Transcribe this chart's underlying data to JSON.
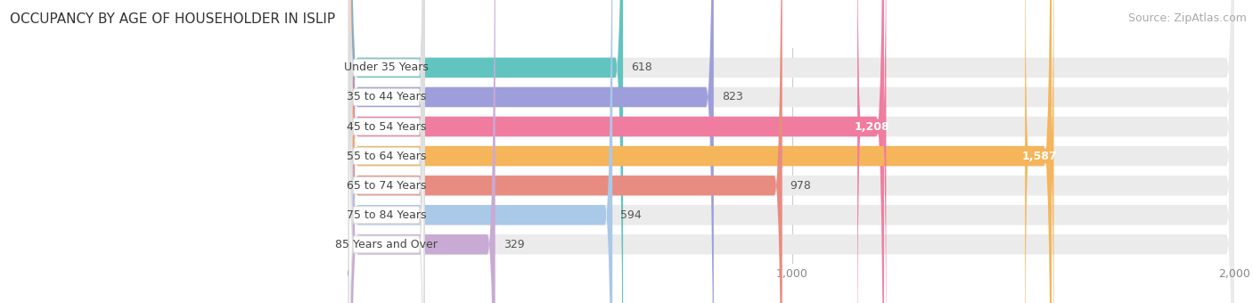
{
  "title": "OCCUPANCY BY AGE OF HOUSEHOLDER IN ISLIP",
  "source": "Source: ZipAtlas.com",
  "categories": [
    "Under 35 Years",
    "35 to 44 Years",
    "45 to 54 Years",
    "55 to 64 Years",
    "65 to 74 Years",
    "75 to 84 Years",
    "85 Years and Over"
  ],
  "values": [
    618,
    823,
    1208,
    1587,
    978,
    594,
    329
  ],
  "bar_colors": [
    "#62c4bf",
    "#9e9fda",
    "#f07ca0",
    "#f5b55a",
    "#e88c82",
    "#aac8e8",
    "#c8aad4"
  ],
  "bar_bg_color": "#ebebeb",
  "xlim_left": -380,
  "xlim_right": 2000,
  "xticks": [
    0,
    1000,
    2000
  ],
  "title_fontsize": 11,
  "source_fontsize": 9,
  "tick_fontsize": 9,
  "bar_label_fontsize": 9,
  "category_fontsize": 9,
  "background_color": "#ffffff",
  "bar_height": 0.68,
  "bar_gap": 1.0
}
